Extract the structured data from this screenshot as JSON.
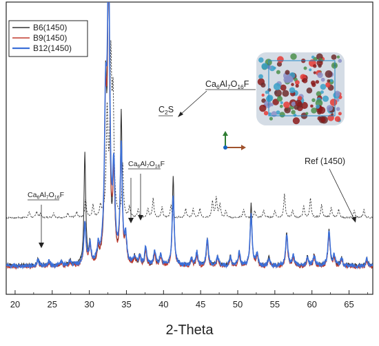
{
  "chart_data": {
    "type": "line",
    "xlabel": "2-Theta",
    "ylabel": "",
    "xlim": [
      18.8,
      68.2
    ],
    "ylim": [
      0,
      1000
    ],
    "x_ticks": [
      20,
      25,
      30,
      35,
      40,
      45,
      50,
      55,
      60,
      65
    ],
    "legend_position": "top-left",
    "grid": false,
    "series": [
      {
        "name": "B6(1450)",
        "color": "#333333",
        "baseline": 40,
        "peaks": [
          [
            23.1,
            22,
            0.13
          ],
          [
            24.6,
            14,
            0.13
          ],
          [
            26.2,
            12,
            0.13
          ],
          [
            27.4,
            18,
            0.13
          ],
          [
            29.4,
            380,
            0.14
          ],
          [
            30.1,
            70,
            0.14
          ],
          [
            31.2,
            40,
            0.14
          ],
          [
            32.2,
            560,
            0.16
          ],
          [
            32.6,
            1000,
            0.16
          ],
          [
            33.3,
            320,
            0.14
          ],
          [
            34.3,
            520,
            0.14
          ],
          [
            34.9,
            90,
            0.14
          ],
          [
            36.1,
            28,
            0.13
          ],
          [
            36.8,
            32,
            0.13
          ],
          [
            37.6,
            55,
            0.13
          ],
          [
            38.8,
            45,
            0.13
          ],
          [
            39.6,
            35,
            0.13
          ],
          [
            41.3,
            310,
            0.14
          ],
          [
            43.8,
            25,
            0.13
          ],
          [
            44.5,
            40,
            0.13
          ],
          [
            45.9,
            90,
            0.13
          ],
          [
            47.3,
            35,
            0.13
          ],
          [
            49.0,
            30,
            0.13
          ],
          [
            50.2,
            45,
            0.13
          ],
          [
            51.8,
            215,
            0.14
          ],
          [
            52.6,
            40,
            0.13
          ],
          [
            54.2,
            28,
            0.13
          ],
          [
            56.6,
            115,
            0.14
          ],
          [
            57.5,
            35,
            0.13
          ],
          [
            59.4,
            30,
            0.13
          ],
          [
            60.3,
            40,
            0.13
          ],
          [
            62.3,
            125,
            0.14
          ],
          [
            63.0,
            35,
            0.13
          ],
          [
            64.0,
            25,
            0.13
          ],
          [
            67.4,
            25,
            0.13
          ]
        ]
      },
      {
        "name": "B9(1450)",
        "color": "#c0392b",
        "baseline": 35,
        "peaks": [
          [
            23.1,
            20,
            0.15
          ],
          [
            24.6,
            14,
            0.15
          ],
          [
            26.2,
            12,
            0.15
          ],
          [
            27.4,
            16,
            0.15
          ],
          [
            29.4,
            150,
            0.16
          ],
          [
            30.1,
            60,
            0.16
          ],
          [
            31.2,
            45,
            0.16
          ],
          [
            32.2,
            480,
            0.18
          ],
          [
            32.6,
            950,
            0.18
          ],
          [
            33.3,
            280,
            0.16
          ],
          [
            34.3,
            380,
            0.16
          ],
          [
            34.9,
            80,
            0.16
          ],
          [
            36.1,
            25,
            0.15
          ],
          [
            36.8,
            30,
            0.15
          ],
          [
            37.6,
            55,
            0.15
          ],
          [
            38.8,
            45,
            0.15
          ],
          [
            39.6,
            30,
            0.15
          ],
          [
            41.3,
            235,
            0.16
          ],
          [
            43.8,
            22,
            0.15
          ],
          [
            44.5,
            40,
            0.15
          ],
          [
            45.9,
            85,
            0.15
          ],
          [
            47.3,
            30,
            0.15
          ],
          [
            49.0,
            28,
            0.15
          ],
          [
            50.2,
            40,
            0.15
          ],
          [
            51.8,
            170,
            0.16
          ],
          [
            52.6,
            35,
            0.15
          ],
          [
            54.2,
            25,
            0.15
          ],
          [
            56.6,
            105,
            0.16
          ],
          [
            57.5,
            30,
            0.15
          ],
          [
            59.4,
            28,
            0.15
          ],
          [
            60.3,
            35,
            0.15
          ],
          [
            62.3,
            115,
            0.16
          ],
          [
            63.0,
            30,
            0.15
          ],
          [
            64.0,
            22,
            0.15
          ],
          [
            67.4,
            22,
            0.15
          ]
        ]
      },
      {
        "name": "B12(1450)",
        "color": "#3b6fd8",
        "baseline": 38,
        "peaks": [
          [
            23.1,
            22,
            0.16
          ],
          [
            24.6,
            16,
            0.16
          ],
          [
            26.2,
            14,
            0.16
          ],
          [
            27.4,
            18,
            0.16
          ],
          [
            29.4,
            140,
            0.17
          ],
          [
            30.1,
            65,
            0.17
          ],
          [
            31.2,
            50,
            0.17
          ],
          [
            32.2,
            500,
            0.19
          ],
          [
            32.6,
            1000,
            0.19
          ],
          [
            33.3,
            300,
            0.17
          ],
          [
            34.3,
            400,
            0.17
          ],
          [
            34.9,
            85,
            0.17
          ],
          [
            36.1,
            28,
            0.16
          ],
          [
            36.8,
            34,
            0.16
          ],
          [
            37.6,
            60,
            0.16
          ],
          [
            38.8,
            50,
            0.16
          ],
          [
            39.6,
            35,
            0.16
          ],
          [
            41.3,
            240,
            0.17
          ],
          [
            43.8,
            25,
            0.16
          ],
          [
            44.5,
            45,
            0.16
          ],
          [
            45.9,
            90,
            0.16
          ],
          [
            47.3,
            32,
            0.16
          ],
          [
            49.0,
            30,
            0.16
          ],
          [
            50.2,
            45,
            0.16
          ],
          [
            51.8,
            175,
            0.17
          ],
          [
            52.6,
            38,
            0.16
          ],
          [
            54.2,
            28,
            0.16
          ],
          [
            56.6,
            110,
            0.17
          ],
          [
            57.5,
            34,
            0.16
          ],
          [
            59.4,
            30,
            0.16
          ],
          [
            60.3,
            38,
            0.16
          ],
          [
            62.3,
            120,
            0.17
          ],
          [
            63.0,
            34,
            0.16
          ],
          [
            64.0,
            25,
            0.16
          ],
          [
            67.4,
            25,
            0.16
          ]
        ]
      },
      {
        "name": "Ref (1450)",
        "color": "#333333",
        "dashed": true,
        "baseline": 205,
        "peaks": [
          [
            21.9,
            20,
            0.12
          ],
          [
            22.9,
            22,
            0.12
          ],
          [
            23.4,
            14,
            0.12
          ],
          [
            25.2,
            16,
            0.12
          ],
          [
            27.1,
            14,
            0.12
          ],
          [
            28.3,
            18,
            0.12
          ],
          [
            29.5,
            60,
            0.12
          ],
          [
            30.5,
            40,
            0.12
          ],
          [
            31.5,
            35,
            0.12
          ],
          [
            32.4,
            350,
            0.14
          ],
          [
            32.9,
            520,
            0.14
          ],
          [
            33.2,
            380,
            0.14
          ],
          [
            34.5,
            180,
            0.12
          ],
          [
            35.4,
            35,
            0.12
          ],
          [
            36.6,
            30,
            0.12
          ],
          [
            37.9,
            30,
            0.12
          ],
          [
            38.6,
            65,
            0.12
          ],
          [
            39.8,
            35,
            0.12
          ],
          [
            41.0,
            45,
            0.12
          ],
          [
            43.0,
            30,
            0.12
          ],
          [
            44.0,
            30,
            0.12
          ],
          [
            44.9,
            30,
            0.12
          ],
          [
            46.6,
            55,
            0.12
          ],
          [
            47.1,
            70,
            0.12
          ],
          [
            47.6,
            45,
            0.12
          ],
          [
            48.4,
            25,
            0.12
          ],
          [
            50.8,
            30,
            0.12
          ],
          [
            52.3,
            25,
            0.12
          ],
          [
            53.5,
            25,
            0.12
          ],
          [
            55.0,
            25,
            0.12
          ],
          [
            56.3,
            80,
            0.12
          ],
          [
            57.4,
            25,
            0.12
          ],
          [
            58.9,
            40,
            0.12
          ],
          [
            59.8,
            65,
            0.12
          ],
          [
            61.3,
            45,
            0.12
          ],
          [
            62.6,
            35,
            0.12
          ],
          [
            63.6,
            30,
            0.12
          ],
          [
            65.7,
            25,
            0.12
          ],
          [
            67.0,
            28,
            0.12
          ]
        ]
      }
    ],
    "annotations": [
      {
        "id": "c2s",
        "text": "C",
        "sub": "2",
        "after": "S",
        "underline": true,
        "x": 41.3
      },
      {
        "id": "ca6",
        "text": "Ca",
        "sub": "6",
        "mid": "Al",
        "sub2": "7",
        "mid2": "O",
        "sub3": "16",
        "after": "F",
        "underline": true,
        "x": 41.3
      },
      {
        "id": "ca6-left",
        "text": "Ca",
        "sub": "6",
        "mid": "Al",
        "sub2": "7",
        "mid2": "O",
        "sub3": "16",
        "after": "F",
        "underline": true,
        "x": 23.5
      },
      {
        "id": "ca6-mid",
        "text": "Ca",
        "sub": "6",
        "mid": "Al",
        "sub2": "7",
        "mid2": "O",
        "sub3": "16",
        "after": "F",
        "underline": true,
        "x": 36.0
      },
      {
        "id": "ref",
        "text": "Ref (1450)",
        "x": 65.3
      }
    ],
    "inset": {
      "description": "crystal structure",
      "colors": [
        "#8b1a1a",
        "#3aa0c8",
        "#e53935",
        "#8a8fc8",
        "#6d2b2b",
        "#4b8f4b"
      ]
    },
    "axes_icon": {
      "colors": [
        "#2e7d32",
        "#1565c0",
        "#a0522d"
      ]
    }
  }
}
